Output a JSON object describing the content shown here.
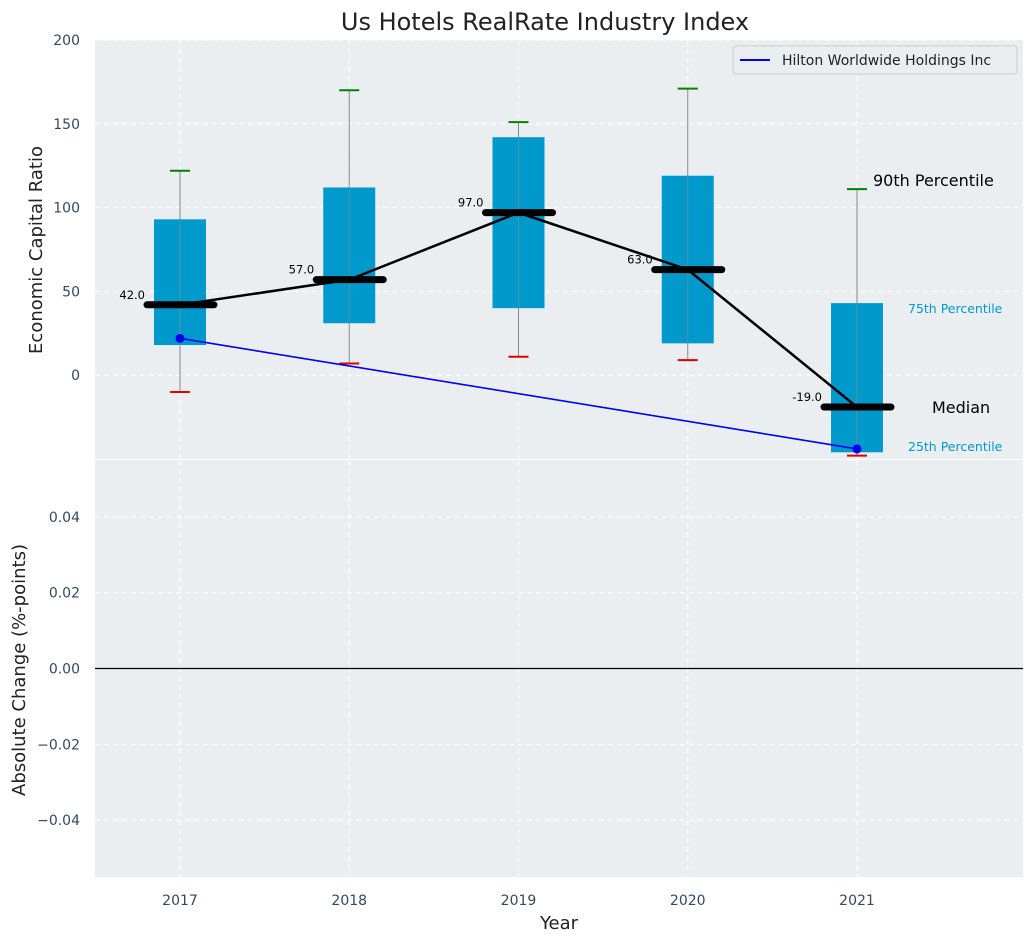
{
  "chart_data": [
    {
      "type": "box",
      "title": "Us Hotels RealRate Industry Index",
      "xlabel": "",
      "ylabel": "Economic Capital Ratio",
      "categories": [
        "2017",
        "2018",
        "2019",
        "2020",
        "2021"
      ],
      "ylim": [
        -50,
        200
      ],
      "yticks": [
        "200",
        "150",
        "100",
        "50",
        "0"
      ],
      "ytick_values": [
        200,
        150,
        100,
        50,
        0
      ],
      "grid": true,
      "legend": {
        "position": "top-right",
        "entries": [
          "Hilton Worldwide Holdings Inc"
        ]
      },
      "series": [
        {
          "name": "p25",
          "values": [
            18,
            31,
            40,
            19,
            -46
          ]
        },
        {
          "name": "p75",
          "values": [
            93,
            112,
            142,
            119,
            43
          ]
        },
        {
          "name": "p10",
          "values": [
            -10,
            7,
            11,
            9,
            -48
          ]
        },
        {
          "name": "p90",
          "values": [
            122,
            170,
            151,
            171,
            111
          ]
        },
        {
          "name": "median",
          "values": [
            42,
            57,
            97,
            63,
            -19
          ]
        },
        {
          "name": "Hilton Worldwide Holdings Inc",
          "values": [
            22,
            null,
            null,
            null,
            -44
          ]
        }
      ],
      "median_labels": [
        "42.0",
        "57.0",
        "97.0",
        "63.0",
        "-19.0"
      ],
      "annotations": {
        "p90": "90th Percentile",
        "p75": "75th Percentile",
        "median": "Median",
        "p25": "25th Percentile"
      }
    },
    {
      "type": "line",
      "xlabel": "Year",
      "ylabel": "Absolute Change (%-points)",
      "categories": [
        "2017",
        "2018",
        "2019",
        "2020",
        "2021"
      ],
      "ylim": [
        -0.055,
        0.055
      ],
      "yticks": [
        "0.04",
        "0.02",
        "0.00",
        "−0.02",
        "−0.04"
      ],
      "ytick_values": [
        0.04,
        0.02,
        0.0,
        -0.02,
        -0.04
      ],
      "reference_line": 0,
      "grid": true
    }
  ],
  "colors": {
    "panel_bg": "#eaeef0",
    "box": "#0099cc",
    "median_bar": "#000000",
    "whisker_high": "#008000",
    "whisker_low": "#dd0000",
    "whisker_line": "#888888",
    "company_line": "#0000ee"
  }
}
